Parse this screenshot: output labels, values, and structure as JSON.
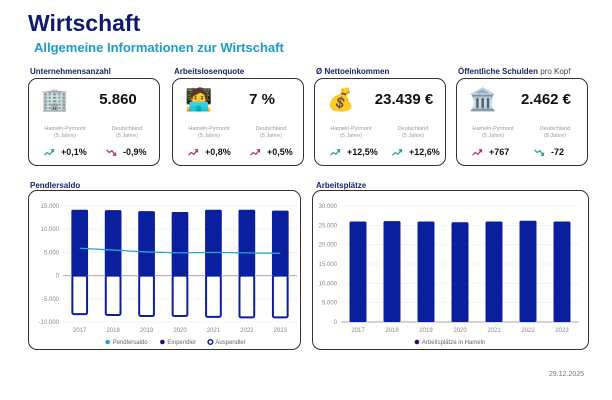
{
  "header": {
    "title": "Wirtschaft",
    "subtitle": "Allgemeine Informationen zur Wirtschaft"
  },
  "cards": [
    {
      "label": "Unternehmensanzahl",
      "label_suffix": "",
      "icon": "office-building-icon",
      "glyph": "🏢",
      "value": "5.860",
      "local_label": "Hameln-Pyrmont",
      "local_period": "(5 Jahre)",
      "national_label": "Deutschland",
      "national_period": "(5 Jahre)",
      "local_trend": "+0,1%",
      "local_dir": "up",
      "local_color": "#2aa876",
      "national_trend": "-0,9%",
      "national_dir": "down",
      "national_color": "#b0307a"
    },
    {
      "label": "Arbeitslosenquote",
      "label_suffix": "",
      "icon": "person-at-laptop-icon",
      "glyph": "🧑‍💻",
      "value": "7 %",
      "local_label": "Hameln-Pyrmont",
      "local_period": "(5 Jahre)",
      "national_label": "Deutschland",
      "national_period": "(5 Jahre)",
      "local_trend": "+0,8%",
      "local_dir": "up",
      "local_color": "#b0307a",
      "national_trend": "+0,5%",
      "national_dir": "up",
      "national_color": "#b0307a"
    },
    {
      "label": "Ø Nettoeinkommen",
      "label_suffix": "",
      "icon": "money-bag-icon",
      "glyph": "💰",
      "value": "23.439 €",
      "local_label": "Hameln-Pyrmont",
      "local_period": "(5 Jahre)",
      "national_label": "Deutschland",
      "national_period": "(5 Jahre)",
      "local_trend": "+12,5%",
      "local_dir": "up",
      "local_color": "#2aa876",
      "national_trend": "+12,6%",
      "national_dir": "up",
      "national_color": "#2aa876"
    },
    {
      "label": "Öffentliche Schulden",
      "label_suffix": " pro Kopf",
      "icon": "bank-building-icon",
      "glyph": "🏛️",
      "value": "2.462 €",
      "local_label": "Hameln-Pyrmont",
      "local_period": "(5 Jahre)",
      "national_label": "Deutschland",
      "national_period": "(5 Jahre)",
      "local_trend": "+767",
      "local_dir": "up",
      "local_color": "#b0307a",
      "national_trend": "-72",
      "national_dir": "down",
      "national_color": "#2aa876"
    }
  ],
  "date": "29.12.2025",
  "chart_data": [
    {
      "title": "Pendlersaldo",
      "type": "bar",
      "categories": [
        "2017",
        "2018",
        "2019",
        "2020",
        "2021",
        "2022",
        "2023"
      ],
      "ylim": [
        -10000,
        15000
      ],
      "yticks": [
        "15.000",
        "10.000",
        "5.000",
        "0",
        "-5.000",
        "-10.000"
      ],
      "ytick_values": [
        15000,
        10000,
        5000,
        0,
        -5000,
        -10000
      ],
      "series": [
        {
          "name": "Pendlersaldo",
          "kind": "line",
          "color": "#29a3d6",
          "values": [
            5900,
            5500,
            5100,
            4900,
            5000,
            4900,
            4800
          ]
        },
        {
          "name": "Einpendler",
          "kind": "bar",
          "color": "#0a1f9e",
          "values": [
            14200,
            14100,
            13900,
            13700,
            14200,
            14200,
            14000
          ]
        },
        {
          "name": "Auspendler",
          "kind": "outline-bar",
          "color": "#0a1f9e",
          "values": [
            -8300,
            -8500,
            -8700,
            -8700,
            -8900,
            -9000,
            -9000
          ]
        }
      ],
      "legend": "bottom",
      "grid": true
    },
    {
      "title": "Arbeitsplätze",
      "type": "bar",
      "categories": [
        "2017",
        "2018",
        "2019",
        "2020",
        "2021",
        "2022",
        "2023"
      ],
      "ylim": [
        0,
        30000
      ],
      "yticks": [
        "30.000",
        "25.000",
        "20.000",
        "15.000",
        "10.000",
        "5.000",
        "0"
      ],
      "ytick_values": [
        30000,
        25000,
        20000,
        15000,
        10000,
        5000,
        0
      ],
      "series": [
        {
          "name": "Arbeitsplätze in Hameln",
          "kind": "bar",
          "color": "#0a1f9e",
          "values": [
            26000,
            26100,
            26000,
            25800,
            26000,
            26200,
            26000
          ]
        }
      ],
      "legend": "bottom",
      "grid": true
    }
  ]
}
